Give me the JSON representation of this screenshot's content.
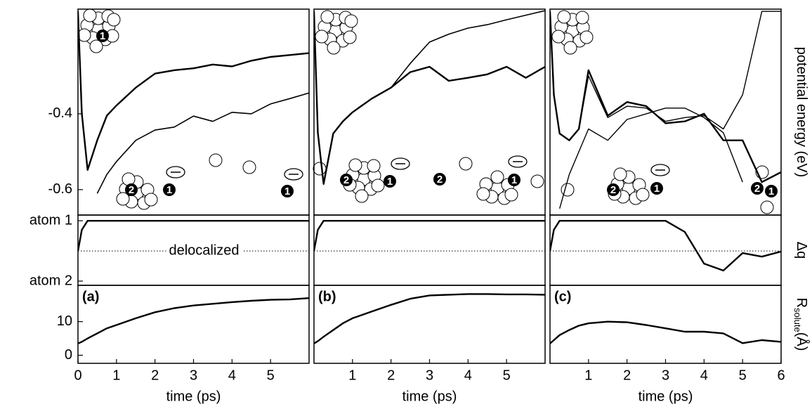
{
  "chart_data": [
    {
      "type": "line",
      "xlim": [
        0,
        6
      ],
      "ylim": [
        -0.667,
        -0.124
      ],
      "yticks": [
        -0.4,
        -0.6
      ],
      "x": [
        0,
        0.1,
        0.25,
        0.5,
        0.75,
        1,
        1.5,
        2,
        2.5,
        3,
        3.5,
        4,
        4.5,
        5,
        5.5,
        6
      ],
      "series": [
        {
          "color": "#000000",
          "width": 2.4,
          "values": [
            -0.13,
            -0.4,
            -0.548,
            -0.47,
            -0.405,
            -0.378,
            -0.331,
            -0.294,
            -0.285,
            -0.28,
            -0.27,
            -0.275,
            -0.26,
            -0.25,
            -0.245,
            -0.24
          ]
        },
        {
          "color": "#000000",
          "width": 1.6,
          "values": [
            null,
            null,
            null,
            -0.61,
            -0.56,
            -0.526,
            -0.47,
            -0.443,
            -0.435,
            -0.406,
            -0.42,
            -0.396,
            -0.4,
            -0.374,
            -0.36,
            -0.345
          ]
        }
      ],
      "cluster_labels": [
        "1",
        "2",
        "1",
        "1"
      ]
    },
    {
      "type": "line",
      "xlim": [
        0,
        6
      ],
      "ylim": [
        -1.14,
        1.19
      ],
      "yticks": [
        {
          "value": 1,
          "label": "atom 1"
        },
        {
          "value": -1,
          "label": "atom 2"
        }
      ],
      "reference_line": 0,
      "annotation": "delocalized",
      "x": [
        0,
        0.1,
        0.25,
        0.5,
        0.75,
        1,
        1.5,
        2,
        2.5,
        3,
        3.5,
        4,
        4.5,
        5,
        5.5,
        6
      ],
      "series": [
        {
          "color": "#000000",
          "width": 2.4,
          "values": [
            0,
            0.7,
            1,
            1,
            1,
            1,
            1,
            1,
            1,
            1,
            1,
            1,
            1,
            1,
            1,
            1
          ]
        }
      ]
    },
    {
      "type": "line",
      "xlim": [
        0,
        6
      ],
      "ylim": [
        -2.4,
        20.8
      ],
      "label": "(a)",
      "yticks": [
        0,
        10
      ],
      "xticks": [
        0,
        1,
        2,
        3,
        4,
        5
      ],
      "xlabel": "time (ps)",
      "x": [
        0,
        0.1,
        0.25,
        0.5,
        0.75,
        1,
        1.5,
        2,
        2.5,
        3,
        3.5,
        4,
        4.5,
        5,
        5.5,
        6
      ],
      "series": [
        {
          "color": "#000000",
          "width": 2.4,
          "values": [
            3.5,
            4,
            5,
            6.5,
            8,
            9,
            11,
            12.8,
            14,
            14.8,
            15.3,
            15.8,
            16.2,
            16.5,
            16.6,
            17
          ]
        }
      ]
    },
    {
      "type": "line",
      "xlim": [
        0,
        6
      ],
      "ylim": [
        -0.667,
        -0.124
      ],
      "x": [
        0,
        0.1,
        0.25,
        0.5,
        0.75,
        1,
        1.5,
        2,
        2.5,
        3,
        3.5,
        4,
        4.5,
        5,
        5.5,
        6
      ],
      "series": [
        {
          "color": "#000000",
          "width": 1.6,
          "values": [
            -0.13,
            -0.45,
            -0.585,
            -0.452,
            -0.42,
            -0.396,
            -0.36,
            -0.331,
            -0.267,
            -0.211,
            -0.19,
            -0.174,
            -0.165,
            -0.152,
            -0.14,
            -0.128
          ]
        },
        {
          "color": "#000000",
          "width": 2.4,
          "values": [
            -0.13,
            -0.45,
            -0.585,
            -0.452,
            -0.42,
            -0.396,
            -0.36,
            -0.331,
            -0.29,
            -0.276,
            -0.313,
            -0.305,
            -0.296,
            -0.276,
            -0.305,
            -0.276
          ]
        }
      ],
      "cluster_labels": [
        "2",
        "1",
        "2",
        "1"
      ]
    },
    {
      "type": "line",
      "xlim": [
        0,
        6
      ],
      "ylim": [
        -1.14,
        1.19
      ],
      "reference_line": 0,
      "x": [
        0,
        0.1,
        0.25,
        0.5,
        0.75,
        1,
        1.5,
        2,
        2.5,
        3,
        3.5,
        4,
        4.5,
        5,
        5.5,
        6
      ],
      "series": [
        {
          "color": "#000000",
          "width": 2.4,
          "values": [
            0,
            0.7,
            1,
            1,
            1,
            1,
            1,
            1,
            1,
            1,
            1,
            1,
            1,
            1,
            1,
            1
          ]
        }
      ]
    },
    {
      "type": "line",
      "xlim": [
        0,
        6
      ],
      "ylim": [
        -2.4,
        20.8
      ],
      "label": "(b)",
      "xticks": [
        1,
        2,
        3,
        4,
        5
      ],
      "xlabel": "time (ps)",
      "x": [
        0,
        0.1,
        0.25,
        0.5,
        0.75,
        1,
        1.5,
        2,
        2.5,
        3,
        3.5,
        4,
        4.5,
        5,
        5.5,
        6
      ],
      "series": [
        {
          "color": "#000000",
          "width": 2.4,
          "values": [
            3.5,
            4.2,
            5.5,
            7.5,
            9.5,
            11,
            13,
            15,
            16.8,
            17.8,
            18,
            18.2,
            18.2,
            18.1,
            18.1,
            18
          ]
        }
      ]
    },
    {
      "type": "line",
      "xlim": [
        0,
        6
      ],
      "ylim": [
        -0.667,
        -0.124
      ],
      "ylabel": "potential energy (eV)",
      "x": [
        0,
        0.1,
        0.25,
        0.5,
        0.75,
        1,
        1.5,
        2,
        2.5,
        3,
        3.5,
        4,
        4.5,
        5,
        5.5,
        6
      ],
      "series": [
        {
          "color": "#000000",
          "width": 2.4,
          "values": [
            -0.13,
            -0.35,
            -0.452,
            -0.47,
            -0.44,
            -0.285,
            -0.405,
            -0.369,
            -0.38,
            -0.425,
            -0.42,
            -0.4,
            -0.47,
            -0.47,
            -0.58,
            -0.554
          ]
        },
        {
          "color": "#000000",
          "width": 1.4,
          "values": [
            -0.13,
            -0.35,
            -0.452,
            -0.47,
            -0.44,
            -0.3,
            -0.41,
            -0.38,
            -0.385,
            -0.42,
            -0.41,
            -0.405,
            -0.44,
            -0.35,
            -0.13,
            -0.13
          ]
        },
        {
          "color": "#000000",
          "width": 1.4,
          "values": [
            null,
            null,
            -0.65,
            -0.56,
            -0.5,
            -0.44,
            -0.47,
            -0.415,
            -0.4,
            -0.385,
            -0.385,
            -0.41,
            -0.45,
            -0.58,
            null,
            null
          ]
        }
      ],
      "cluster_labels": [
        "2",
        "1",
        "2",
        "1"
      ]
    },
    {
      "type": "line",
      "xlim": [
        0,
        6
      ],
      "ylim": [
        -1.14,
        1.19
      ],
      "reference_line": 0,
      "ylabel": "Δq",
      "x": [
        0,
        0.1,
        0.25,
        0.5,
        0.75,
        1,
        1.5,
        2,
        2.5,
        3,
        3.5,
        4,
        4.5,
        5,
        5.5,
        6
      ],
      "series": [
        {
          "color": "#000000",
          "width": 2.4,
          "values": [
            0,
            0.7,
            1,
            1,
            1,
            1,
            1,
            1,
            1,
            1,
            0.63,
            -0.42,
            -0.65,
            -0.07,
            -0.19,
            -0.02
          ]
        }
      ]
    },
    {
      "type": "line",
      "xlim": [
        0,
        6
      ],
      "ylim": [
        -2.4,
        20.8
      ],
      "label": "(c)",
      "xticks": [
        1,
        2,
        3,
        4,
        5,
        6
      ],
      "xlabel": "time (ps)",
      "ylabel": "R",
      "ylabel_sub": "solute",
      "ylabel_unit": "(Å)",
      "x": [
        0,
        0.1,
        0.25,
        0.5,
        0.75,
        1,
        1.5,
        2,
        2.5,
        3,
        3.5,
        4,
        4.5,
        5,
        5.5,
        6
      ],
      "series": [
        {
          "color": "#000000",
          "width": 2.4,
          "values": [
            3.5,
            4.5,
            6,
            7.5,
            8.8,
            9.5,
            10,
            9.8,
            9,
            8,
            7,
            7,
            6.5,
            3.6,
            4.5,
            4
          ]
        }
      ]
    }
  ]
}
